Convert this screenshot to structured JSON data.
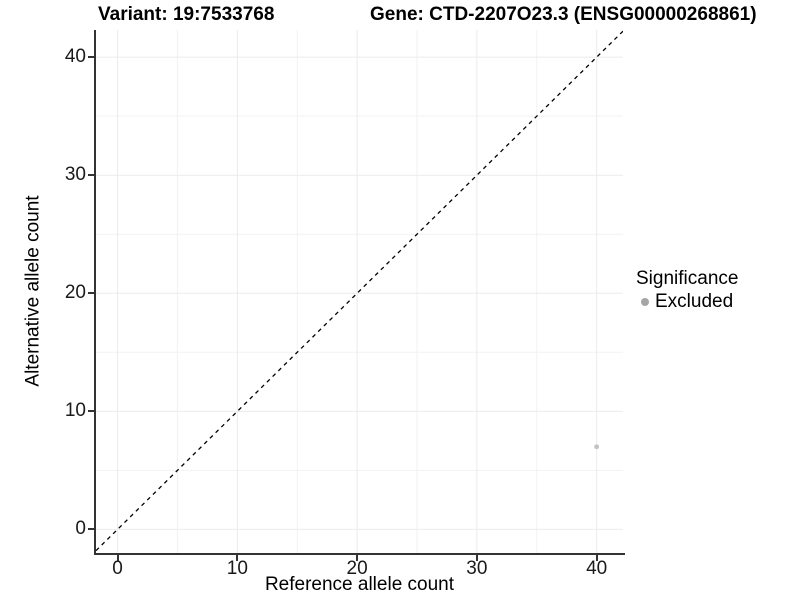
{
  "chart_data": {
    "type": "scatter",
    "title_left": "Variant: 19:7533768",
    "title_right": "Gene: CTD-2207O23.3 (ENSG00000268861)",
    "xlabel": "Reference allele count",
    "ylabel": "Alternative allele count",
    "xlim": [
      -1.8,
      42.2
    ],
    "ylim": [
      -2.0,
      42.3
    ],
    "x_ticks": [
      0,
      10,
      20,
      30,
      40
    ],
    "y_ticks": [
      0,
      10,
      20,
      30,
      40
    ],
    "x_minor_ticks": [
      5,
      15,
      25,
      35
    ],
    "y_minor_ticks": [
      5,
      15,
      25,
      35
    ],
    "grid": "on",
    "legend_position": "right",
    "identity_line": {
      "style": "dashed",
      "color": "#000000",
      "slope": 1,
      "intercept": 0
    },
    "series": [
      {
        "name": "Excluded",
        "color": "#c2c2c2",
        "points": [
          {
            "x": 40,
            "y": 7
          }
        ]
      }
    ],
    "legend": {
      "title": "Significance",
      "items": [
        {
          "label": "Excluded",
          "color": "#a6a6a6"
        }
      ]
    }
  },
  "colors": {
    "axis_line": "#333333",
    "grid_major": "#ebebeb",
    "grid_minor": "#f2f2f2",
    "tick_text": "#1a1a1a",
    "point": "#c2c2c2",
    "legend_dot": "#a6a6a6",
    "identity_line": "#000000"
  }
}
